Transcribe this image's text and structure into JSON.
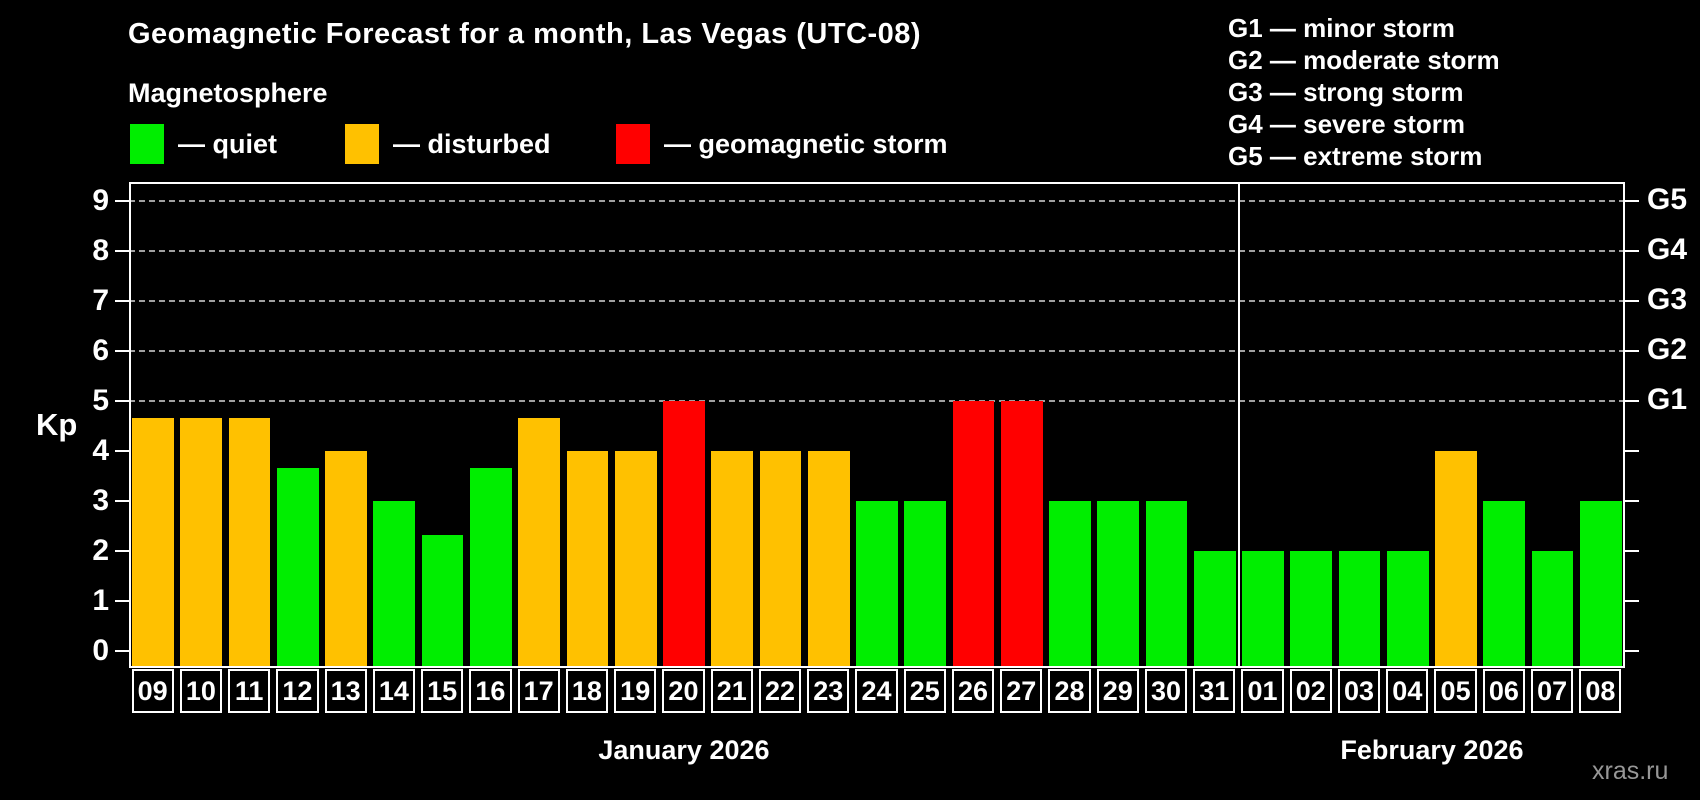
{
  "header": {
    "title": "Geomagnetic Forecast for a month, Las Vegas (UTC-08)",
    "subtitle": "Magnetosphere"
  },
  "legend": {
    "items": [
      {
        "key": "quiet",
        "label": "— quiet",
        "color": "#00ee00"
      },
      {
        "key": "disturbed",
        "label": "— disturbed",
        "color": "#ffc100"
      },
      {
        "key": "storm",
        "label": "— geomagnetic storm",
        "color": "#ff0000"
      }
    ]
  },
  "storm_scale": {
    "items": [
      "G1 — minor storm",
      "G2 — moderate storm",
      "G3 — strong storm",
      "G4 — severe storm",
      "G5 — extreme storm"
    ]
  },
  "watermark": "xras.ru",
  "chart_data": {
    "type": "bar",
    "title": "Geomagnetic Forecast for a month, Las Vegas (UTC-08)",
    "ylabel": "Kp",
    "ylim": [
      0,
      9
    ],
    "yticks": [
      0,
      1,
      2,
      3,
      4,
      5,
      6,
      7,
      8,
      9
    ],
    "gridlines_kp": [
      5,
      6,
      7,
      8,
      9
    ],
    "grid": "dashed horizontal at storm levels only",
    "right_axis": [
      {
        "label": "G1",
        "kp": 5
      },
      {
        "label": "G2",
        "kp": 6
      },
      {
        "label": "G3",
        "kp": 7
      },
      {
        "label": "G4",
        "kp": 8
      },
      {
        "label": "G5",
        "kp": 9
      }
    ],
    "colors": {
      "quiet": "#00ee00",
      "disturbed": "#ffc100",
      "storm": "#ff0000"
    },
    "months": [
      {
        "label": "January 2026",
        "days": 23
      },
      {
        "label": "February 2026",
        "days": 8
      }
    ],
    "bars": [
      {
        "day": "09",
        "kp": 4.67,
        "status": "disturbed"
      },
      {
        "day": "10",
        "kp": 4.67,
        "status": "disturbed"
      },
      {
        "day": "11",
        "kp": 4.67,
        "status": "disturbed"
      },
      {
        "day": "12",
        "kp": 3.67,
        "status": "quiet"
      },
      {
        "day": "13",
        "kp": 4.0,
        "status": "disturbed"
      },
      {
        "day": "14",
        "kp": 3.0,
        "status": "quiet"
      },
      {
        "day": "15",
        "kp": 2.33,
        "status": "quiet"
      },
      {
        "day": "16",
        "kp": 3.67,
        "status": "quiet"
      },
      {
        "day": "17",
        "kp": 4.67,
        "status": "disturbed"
      },
      {
        "day": "18",
        "kp": 4.0,
        "status": "disturbed"
      },
      {
        "day": "19",
        "kp": 4.0,
        "status": "disturbed"
      },
      {
        "day": "20",
        "kp": 5.0,
        "status": "storm"
      },
      {
        "day": "21",
        "kp": 4.0,
        "status": "disturbed"
      },
      {
        "day": "22",
        "kp": 4.0,
        "status": "disturbed"
      },
      {
        "day": "23",
        "kp": 4.0,
        "status": "disturbed"
      },
      {
        "day": "24",
        "kp": 3.0,
        "status": "quiet"
      },
      {
        "day": "25",
        "kp": 3.0,
        "status": "quiet"
      },
      {
        "day": "26",
        "kp": 5.0,
        "status": "storm"
      },
      {
        "day": "27",
        "kp": 5.0,
        "status": "storm"
      },
      {
        "day": "28",
        "kp": 3.0,
        "status": "quiet"
      },
      {
        "day": "29",
        "kp": 3.0,
        "status": "quiet"
      },
      {
        "day": "30",
        "kp": 3.0,
        "status": "quiet"
      },
      {
        "day": "31",
        "kp": 2.0,
        "status": "quiet"
      },
      {
        "day": "01",
        "kp": 2.0,
        "status": "quiet"
      },
      {
        "day": "02",
        "kp": 2.0,
        "status": "quiet"
      },
      {
        "day": "03",
        "kp": 2.0,
        "status": "quiet"
      },
      {
        "day": "04",
        "kp": 2.0,
        "status": "quiet"
      },
      {
        "day": "05",
        "kp": 4.0,
        "status": "disturbed"
      },
      {
        "day": "06",
        "kp": 3.0,
        "status": "quiet"
      },
      {
        "day": "07",
        "kp": 2.0,
        "status": "quiet"
      },
      {
        "day": "08",
        "kp": 3.0,
        "status": "quiet"
      }
    ]
  }
}
